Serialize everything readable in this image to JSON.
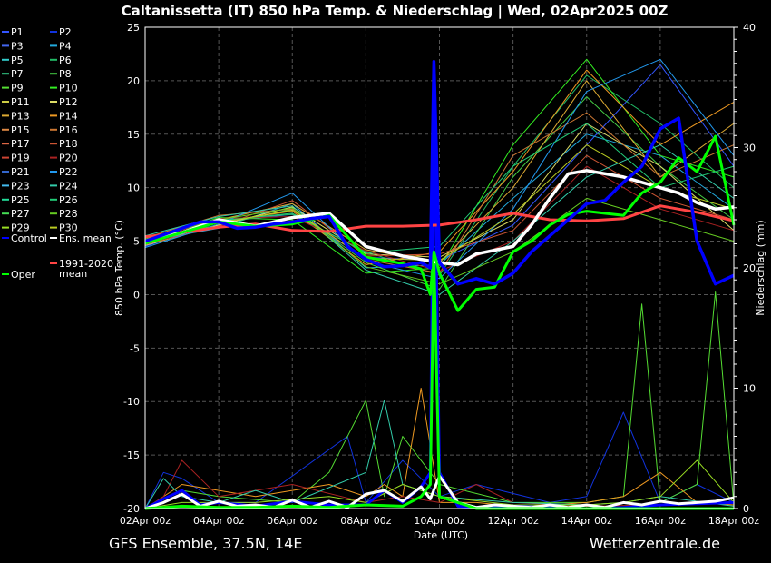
{
  "header": {
    "title": "Caltanissetta  (IT)  850 hPa Temp. & Niederschlag | Wed, 02Apr2025 00Z"
  },
  "footer": {
    "left": "GFS Ensemble, 37.5N, 14E",
    "right": "Wetterzentrale.de"
  },
  "chart_data": {
    "type": "line",
    "title": "Caltanissetta  (IT)  850 hPa Temp. & Niederschlag | Wed, 02Apr2025 00Z",
    "xlabel": "Date (UTC)",
    "ylabel": "850 hPa Temp. (°C)",
    "y2label": "Niederschlag (mm)",
    "ylim": [
      -20,
      25
    ],
    "y2lim": [
      0,
      40
    ],
    "yticks": [
      25,
      20,
      15,
      10,
      5,
      0,
      -5,
      -10,
      -15,
      -20
    ],
    "y2ticks": [
      40,
      30,
      20,
      10,
      0
    ],
    "xlim": [
      0,
      16
    ],
    "xticks": [
      {
        "x": 0,
        "label": "02Apr 00z"
      },
      {
        "x": 2,
        "label": "04Apr 00z"
      },
      {
        "x": 4,
        "label": "06Apr 00z"
      },
      {
        "x": 6,
        "label": "08Apr 00z"
      },
      {
        "x": 8,
        "label": "10Apr 00z"
      },
      {
        "x": 10,
        "label": "12Apr 00z"
      },
      {
        "x": 12,
        "label": "14Apr 00z"
      },
      {
        "x": 14,
        "label": "16Apr 00z"
      },
      {
        "x": 16,
        "label": "18Apr 00z"
      }
    ],
    "grid": true,
    "legend_position": "left",
    "legend": [
      {
        "label": "P1",
        "color": "#3355ff"
      },
      {
        "label": "P2",
        "color": "#1133dd"
      },
      {
        "label": "P3",
        "color": "#4466ee"
      },
      {
        "label": "P4",
        "color": "#22aadd"
      },
      {
        "label": "P5",
        "color": "#33cccc"
      },
      {
        "label": "P6",
        "color": "#22bb66"
      },
      {
        "label": "P7",
        "color": "#33cc88"
      },
      {
        "label": "P8",
        "color": "#44cc44"
      },
      {
        "label": "P9",
        "color": "#55dd33"
      },
      {
        "label": "P10",
        "color": "#33ee22"
      },
      {
        "label": "P11",
        "color": "#cccc44"
      },
      {
        "label": "P12",
        "color": "#dddd66"
      },
      {
        "label": "P13",
        "color": "#ddaa33"
      },
      {
        "label": "P14",
        "color": "#ee9922"
      },
      {
        "label": "P15",
        "color": "#dd8844"
      },
      {
        "label": "P16",
        "color": "#cc7733"
      },
      {
        "label": "P17",
        "color": "#dd6644"
      },
      {
        "label": "P18",
        "color": "#cc5533"
      },
      {
        "label": "P19",
        "color": "#cc4433"
      },
      {
        "label": "P20",
        "color": "#aa2222"
      },
      {
        "label": "P21",
        "color": "#3366cc"
      },
      {
        "label": "P22",
        "color": "#2299ee"
      },
      {
        "label": "P23",
        "color": "#44bbee"
      },
      {
        "label": "P24",
        "color": "#33ccaa"
      },
      {
        "label": "P25",
        "color": "#22dd99"
      },
      {
        "label": "P26",
        "color": "#22cc77"
      },
      {
        "label": "P27",
        "color": "#44dd55"
      },
      {
        "label": "P28",
        "color": "#66cc22"
      },
      {
        "label": "P29",
        "color": "#99dd22"
      },
      {
        "label": "P30",
        "color": "#bbcc22"
      },
      {
        "label": "Control",
        "color": "#0000ff"
      },
      {
        "label": "Ens. mean",
        "color": "#ffffff"
      },
      {
        "label": "1991-2020 mean",
        "color": "#ff4444"
      },
      {
        "label": "Oper",
        "color": "#00ff00"
      }
    ],
    "series": [
      {
        "name": "Control",
        "color": "#0000ff",
        "width": 3.5,
        "x": [
          0,
          0.5,
          1,
          1.5,
          2,
          2.5,
          3,
          3.5,
          4,
          4.5,
          5,
          5.5,
          6,
          6.5,
          7,
          7.5,
          7.75,
          7.85,
          8,
          8.5,
          9,
          9.5,
          10,
          10.5,
          11,
          11.5,
          12,
          12.5,
          13,
          13.5,
          14,
          14.5,
          15,
          15.5,
          16
        ],
        "y": [
          5,
          5.6,
          6.2,
          6.8,
          6.8,
          6.2,
          6.3,
          6.6,
          6.8,
          7.1,
          7.3,
          4.5,
          3.3,
          2.6,
          2.7,
          3,
          2.5,
          21.8,
          3,
          1,
          1.5,
          1,
          2,
          4,
          5.5,
          7,
          8.5,
          8.8,
          10.5,
          12,
          15.5,
          16.5,
          5,
          1,
          1.8
        ]
      },
      {
        "name": "Ens. mean",
        "color": "#ffffff",
        "width": 3.5,
        "x": [
          0,
          1,
          2,
          3,
          4,
          5,
          6,
          7,
          8,
          8.5,
          9,
          10,
          10.5,
          11,
          11.5,
          12,
          13,
          14,
          14.5,
          15,
          15.5,
          16
        ],
        "y": [
          5,
          5.8,
          7,
          6.4,
          7.2,
          7.6,
          4.5,
          3.6,
          3,
          2.8,
          3.8,
          4.5,
          6.5,
          9,
          11.3,
          11.6,
          11,
          10,
          9.5,
          8.6,
          8,
          8.2
        ]
      },
      {
        "name": "1991-2020 mean",
        "color": "#ff4444",
        "width": 3,
        "x": [
          0,
          1,
          2,
          3,
          4,
          5,
          6,
          7,
          8,
          9,
          10,
          11,
          12,
          13,
          14,
          15,
          16
        ],
        "y": [
          5.4,
          5.8,
          6.3,
          6.6,
          6,
          5.9,
          6.4,
          6.4,
          6.5,
          7,
          7.6,
          7,
          6.9,
          7.1,
          8.3,
          7.7,
          6.9
        ]
      },
      {
        "name": "Oper",
        "color": "#00ff00",
        "width": 3,
        "x": [
          0,
          1,
          2,
          3,
          4,
          5,
          6,
          7,
          7.5,
          7.75,
          7.85,
          8,
          8.5,
          9,
          9.5,
          10,
          10.5,
          11,
          11.5,
          12,
          13,
          13.5,
          14,
          14.5,
          15,
          15.5,
          16
        ],
        "y": [
          4.8,
          5.8,
          6.8,
          6.4,
          6.6,
          7.4,
          3.5,
          2.9,
          2.4,
          0,
          4,
          2,
          -1.5,
          0.5,
          0.7,
          4,
          5,
          6.5,
          7.5,
          7.8,
          7.4,
          9.5,
          10.5,
          12.8,
          11.5,
          14.8,
          6.5
        ]
      },
      {
        "name": "P1",
        "color": "#3355ff",
        "width": 1,
        "x": [
          0,
          2,
          4,
          6,
          8,
          10,
          12,
          14,
          16
        ],
        "y": [
          4.5,
          6.8,
          7.5,
          3.5,
          3.2,
          6.5,
          14,
          21.5,
          12
        ]
      },
      {
        "name": "P4",
        "color": "#22aadd",
        "width": 1,
        "x": [
          0,
          2,
          4,
          6,
          8,
          10,
          12,
          14,
          16
        ],
        "y": [
          5,
          6.2,
          8.5,
          2.5,
          2.8,
          9,
          15,
          13,
          8
        ]
      },
      {
        "name": "P6",
        "color": "#22bb66",
        "width": 1,
        "x": [
          0,
          2,
          4,
          6,
          8,
          10,
          12,
          14,
          16
        ],
        "y": [
          4.8,
          7,
          7.5,
          4,
          1.8,
          12,
          20.5,
          16,
          10
        ]
      },
      {
        "name": "P8",
        "color": "#44cc44",
        "width": 1,
        "x": [
          0,
          2,
          4,
          6,
          8,
          10,
          12,
          14,
          16
        ],
        "y": [
          5.2,
          6.5,
          8,
          3,
          0.5,
          11,
          18.5,
          12,
          7
        ]
      },
      {
        "name": "P10",
        "color": "#33ee22",
        "width": 1,
        "x": [
          0,
          2,
          4,
          6,
          8,
          10,
          12,
          14,
          16
        ],
        "y": [
          5,
          7.2,
          7,
          2,
          2.5,
          14,
          22,
          13,
          11
        ]
      },
      {
        "name": "P12",
        "color": "#dddd66",
        "width": 1,
        "x": [
          0,
          2,
          4,
          6,
          8,
          10,
          12,
          14,
          16
        ],
        "y": [
          4.6,
          6.5,
          8.2,
          3.8,
          3.5,
          7,
          16,
          12,
          6
        ]
      },
      {
        "name": "P13",
        "color": "#ddaa33",
        "width": 1,
        "x": [
          0,
          2,
          4,
          6,
          8,
          10,
          12,
          14,
          16
        ],
        "y": [
          5.1,
          7,
          8.5,
          4.2,
          3,
          10,
          20,
          11,
          16
        ]
      },
      {
        "name": "P14",
        "color": "#ee9922",
        "width": 1,
        "x": [
          0,
          2,
          4,
          6,
          8,
          10,
          12,
          14,
          16
        ],
        "y": [
          4.9,
          6.8,
          7.8,
          2.8,
          4,
          11.5,
          21,
          14,
          18
        ]
      },
      {
        "name": "P16",
        "color": "#cc7733",
        "width": 1,
        "x": [
          0,
          2,
          4,
          6,
          8,
          10,
          12,
          14,
          16
        ],
        "y": [
          5.3,
          7.4,
          8,
          3.3,
          2,
          13,
          17,
          11,
          14
        ]
      },
      {
        "name": "P18",
        "color": "#cc5533",
        "width": 1,
        "x": [
          0,
          2,
          4,
          6,
          8,
          10,
          12,
          14,
          16
        ],
        "y": [
          4.7,
          6.4,
          8.8,
          3.6,
          3.8,
          6,
          13,
          9,
          7
        ]
      },
      {
        "name": "P20",
        "color": "#aa2222",
        "width": 1,
        "x": [
          0,
          2,
          4,
          6,
          8,
          10,
          12,
          14,
          16
        ],
        "y": [
          5,
          7.1,
          7.3,
          4.1,
          2.2,
          5,
          12,
          8,
          6
        ]
      },
      {
        "name": "P22",
        "color": "#2299ee",
        "width": 1,
        "x": [
          0,
          2,
          4,
          6,
          8,
          10,
          12,
          14,
          16
        ],
        "y": [
          4.4,
          6.6,
          9.5,
          3.1,
          1.5,
          8,
          19,
          22,
          13
        ]
      },
      {
        "name": "P24",
        "color": "#33ccaa",
        "width": 1,
        "x": [
          0,
          2,
          4,
          6,
          8,
          10,
          12,
          14,
          16
        ],
        "y": [
          5.5,
          7.3,
          8.3,
          2.3,
          0,
          5,
          11,
          14,
          9
        ]
      },
      {
        "name": "P26",
        "color": "#22cc77",
        "width": 1,
        "x": [
          0,
          2,
          4,
          6,
          8,
          10,
          12,
          14,
          16
        ],
        "y": [
          4.8,
          6.9,
          7.6,
          3.9,
          4.5,
          12,
          16,
          10,
          12
        ]
      },
      {
        "name": "P28",
        "color": "#66cc22",
        "width": 1,
        "x": [
          0,
          2,
          4,
          6,
          8,
          10,
          12,
          14,
          16
        ],
        "y": [
          5.2,
          7,
          8.1,
          2.6,
          1,
          4,
          9,
          7,
          5
        ]
      },
      {
        "name": "P30",
        "color": "#bbcc22",
        "width": 1,
        "x": [
          0,
          2,
          4,
          6,
          8,
          10,
          12,
          14,
          16
        ],
        "y": [
          5,
          6.7,
          7.9,
          3.4,
          3.2,
          7.5,
          14,
          10,
          8
        ]
      }
    ],
    "precip_series": [
      {
        "name": "Control",
        "color": "#0000ff",
        "width": 3,
        "x": [
          0,
          0.5,
          1,
          1.5,
          2,
          3,
          4,
          5,
          6,
          6.5,
          7,
          7.5,
          7.75,
          7.85,
          8,
          8.5,
          9,
          10,
          11,
          12,
          13,
          14,
          15,
          16
        ],
        "y": [
          0,
          0.8,
          1.5,
          0.3,
          0.5,
          0.2,
          0.6,
          0.3,
          0.3,
          1.5,
          0.5,
          1.8,
          3,
          35,
          3,
          0.2,
          0.1,
          0.2,
          0.1,
          0,
          0.1,
          0.3,
          0.4,
          0.5
        ]
      },
      {
        "name": "Ens. mean",
        "color": "#ffffff",
        "width": 3,
        "x": [
          0,
          0.5,
          1,
          1.5,
          2,
          2.5,
          3,
          3.5,
          4,
          4.5,
          5,
          5.5,
          6,
          6.5,
          7,
          7.5,
          7.75,
          8,
          8.5,
          9,
          9.5,
          10,
          10.5,
          11,
          11.5,
          12,
          12.5,
          13,
          13.5,
          14,
          14.5,
          15,
          15.5,
          16
        ],
        "y": [
          0,
          0.5,
          1.2,
          0.2,
          0.6,
          0.2,
          0.3,
          0.1,
          0.7,
          0.1,
          0.6,
          0.1,
          1.2,
          1.5,
          0.6,
          1.8,
          0.8,
          2.7,
          0.5,
          0.1,
          0.3,
          0.2,
          0.1,
          0.3,
          0.1,
          0.3,
          0.1,
          0.5,
          0.3,
          0.6,
          0.4,
          0.5,
          0.6,
          0.9
        ]
      },
      {
        "name": "Oper",
        "color": "#00ff00",
        "width": 3,
        "x": [
          0,
          1,
          2,
          3,
          4,
          5,
          6,
          7,
          7.5,
          7.75,
          7.85,
          8,
          9,
          10,
          11,
          12,
          13,
          14,
          15,
          16
        ],
        "y": [
          0,
          0.2,
          0.1,
          0.1,
          0.2,
          0.1,
          0.3,
          0.2,
          1,
          2,
          21,
          1,
          0,
          0,
          0,
          0,
          0,
          0,
          0,
          0
        ]
      },
      {
        "name": "P2",
        "color": "#1133dd",
        "width": 1,
        "x": [
          0,
          0.5,
          1,
          2,
          3,
          5.5,
          6,
          7,
          8,
          9,
          11,
          12,
          13,
          14,
          15,
          16
        ],
        "y": [
          0,
          3,
          2.5,
          0.5,
          0.5,
          6,
          0.5,
          4,
          1,
          2,
          0.5,
          1,
          8,
          0.5,
          2,
          0.5
        ]
      },
      {
        "name": "P9",
        "color": "#55dd33",
        "width": 1,
        "x": [
          0,
          1,
          2,
          4,
          5,
          6,
          6.5,
          7,
          8,
          10,
          12,
          13,
          13.5,
          14,
          15,
          15.5,
          16
        ],
        "y": [
          0,
          1.5,
          1,
          0.5,
          3,
          9,
          1,
          6,
          2,
          0.5,
          0.5,
          1,
          17,
          0.5,
          2,
          18,
          0.3
        ]
      },
      {
        "name": "P14",
        "color": "#ee9922",
        "width": 1,
        "x": [
          0,
          1,
          3,
          5,
          6,
          6.5,
          7,
          7.5,
          8,
          9,
          10,
          11,
          12,
          13,
          14,
          15,
          16
        ],
        "y": [
          0,
          2,
          1,
          2,
          1,
          2,
          1,
          10,
          0.5,
          0.5,
          0.2,
          0.3,
          0.5,
          1,
          3,
          0.5,
          0.3
        ]
      },
      {
        "name": "P20",
        "color": "#aa2222",
        "width": 1,
        "x": [
          0,
          0.5,
          1,
          2,
          4,
          6,
          7,
          8,
          9,
          10,
          12,
          14,
          16
        ],
        "y": [
          0,
          1,
          4,
          1,
          2,
          0.5,
          1,
          0.5,
          2,
          0.5,
          0.2,
          0.3,
          0.5
        ]
      },
      {
        "name": "P24",
        "color": "#33ccaa",
        "width": 1,
        "x": [
          0,
          0.5,
          1,
          2,
          3,
          4,
          6,
          6.5,
          7,
          8,
          10,
          12,
          13,
          14,
          16
        ],
        "y": [
          0,
          2.5,
          1,
          0.5,
          1.5,
          0.5,
          3,
          9,
          2,
          1,
          0.5,
          0.3,
          0.5,
          1,
          0.2
        ]
      },
      {
        "name": "P29",
        "color": "#99dd22",
        "width": 1,
        "x": [
          0,
          1,
          3,
          5,
          6,
          7,
          8,
          10,
          12,
          13,
          14,
          15,
          16
        ],
        "y": [
          0,
          0.5,
          0.5,
          1,
          0.5,
          2,
          1,
          0.3,
          0.3,
          0.5,
          1,
          4,
          0.5
        ]
      }
    ]
  }
}
